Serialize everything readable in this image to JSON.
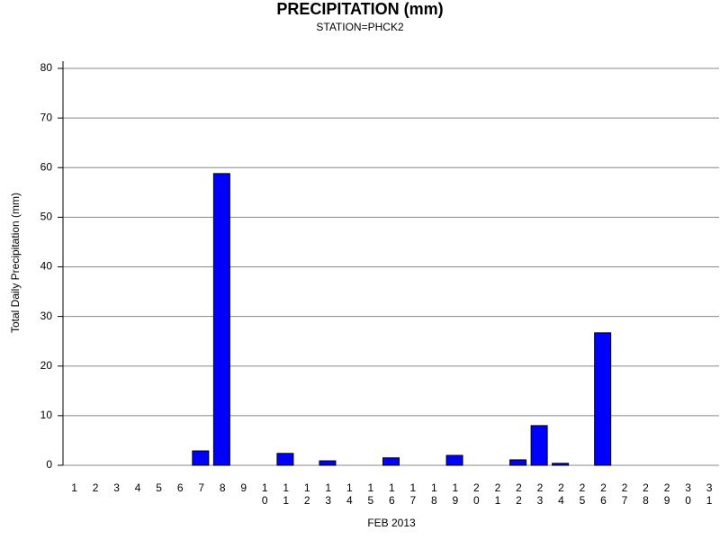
{
  "chart_data": {
    "type": "bar",
    "title": "PRECIPITATION (mm)",
    "subtitle": "STATION=PHCK2",
    "x_label": "FEB 2013",
    "y_label": "Total Daily Precipitation (mm)",
    "categories": [
      "1",
      "2",
      "3",
      "4",
      "5",
      "6",
      "7",
      "8",
      "9",
      "10",
      "11",
      "12",
      "13",
      "14",
      "15",
      "16",
      "17",
      "18",
      "19",
      "20",
      "21",
      "22",
      "23",
      "24",
      "25",
      "26",
      "27",
      "28",
      "29",
      "30",
      "31"
    ],
    "values": [
      0,
      0,
      0,
      0,
      0,
      0,
      2.9,
      58.8,
      0,
      0,
      2.4,
      0,
      0.9,
      0,
      0,
      1.5,
      0,
      0,
      2.0,
      0,
      0,
      1.1,
      8.0,
      0.4,
      0,
      26.7,
      0,
      0,
      0,
      0,
      0
    ],
    "color": "#0000ff",
    "ylim": [
      0,
      80
    ],
    "yticks": [
      0,
      10,
      20,
      30,
      40,
      50,
      60,
      70,
      80
    ],
    "grid": true
  }
}
